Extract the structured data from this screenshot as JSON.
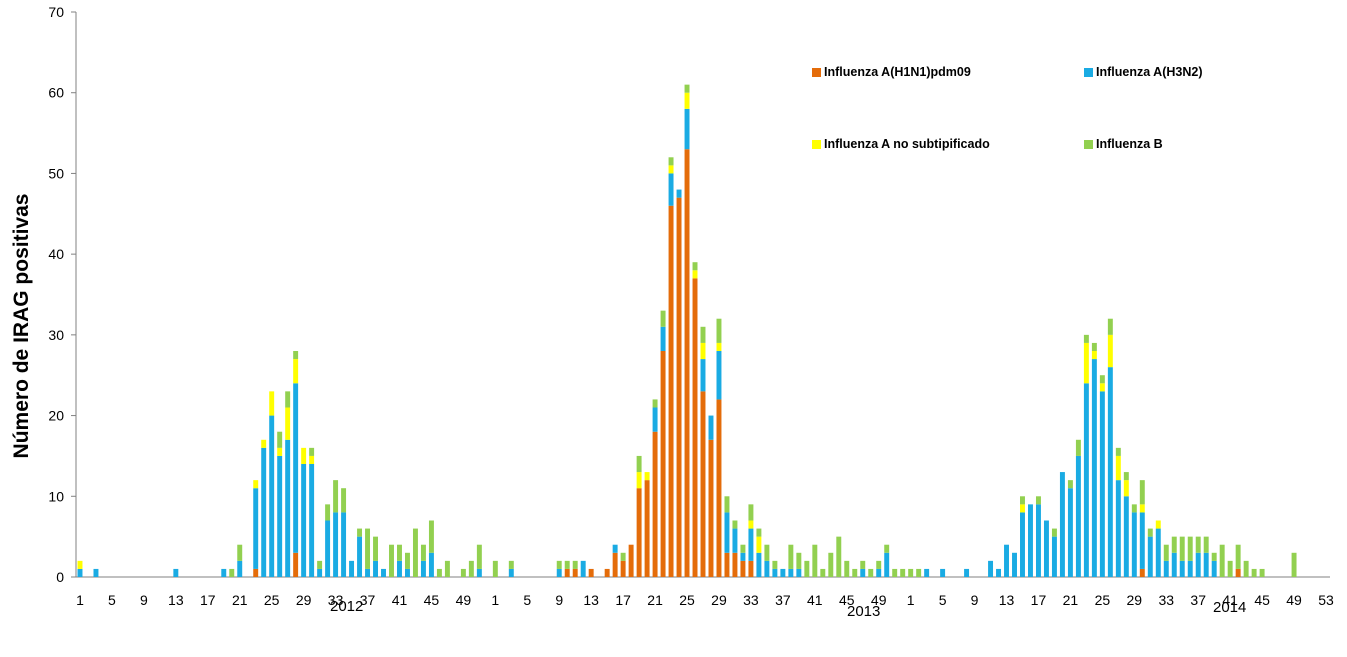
{
  "chart_data": {
    "type": "bar",
    "stacked": true,
    "title": "",
    "xlabel": "",
    "ylabel": "Número de IRAG positivas",
    "ylim": [
      0,
      70
    ],
    "yticks": [
      0,
      10,
      20,
      30,
      40,
      50,
      60,
      70
    ],
    "grid": false,
    "legend_position": "top-right",
    "years": [
      "2012",
      "2013",
      "2014"
    ],
    "weeks_per_year": [
      52,
      52,
      53
    ],
    "week_tick_labels": [
      [
        "1",
        "5",
        "9",
        "13",
        "17",
        "21",
        "25",
        "29",
        "33",
        "37",
        "41",
        "45",
        "49"
      ],
      [
        "1",
        "5",
        "9",
        "13",
        "17",
        "21",
        "25",
        "29",
        "33",
        "37",
        "41",
        "45",
        "49"
      ],
      [
        "1",
        "5",
        "9",
        "13",
        "17",
        "21",
        "25",
        "29",
        "33",
        "37",
        "41",
        "45",
        "49",
        "53"
      ]
    ],
    "series": [
      {
        "name": "Influenza A(H1N1)pdm09",
        "color": "#E46C0A",
        "values": [
          0,
          0,
          0,
          0,
          0,
          0,
          0,
          0,
          0,
          0,
          0,
          0,
          0,
          0,
          0,
          0,
          0,
          0,
          0,
          0,
          0,
          0,
          1,
          0,
          0,
          0,
          0,
          3,
          0,
          0,
          0,
          0,
          0,
          0,
          0,
          0,
          0,
          0,
          0,
          0,
          0,
          0,
          0,
          0,
          0,
          0,
          0,
          0,
          0,
          0,
          0,
          0,
          0,
          0,
          0,
          0,
          0,
          0,
          0,
          0,
          0,
          1,
          1,
          0,
          1,
          0,
          1,
          3,
          2,
          4,
          11,
          12,
          18,
          28,
          46,
          47,
          53,
          37,
          23,
          17,
          22,
          3,
          3,
          2,
          2,
          0,
          0,
          0,
          0,
          0,
          0,
          0,
          0,
          0,
          0,
          0,
          0,
          0,
          0,
          0,
          0,
          0,
          0,
          0,
          0,
          0,
          0,
          0,
          0,
          0,
          0,
          0,
          0,
          0,
          0,
          0,
          0,
          0,
          0,
          0,
          0,
          0,
          0,
          0,
          0,
          0,
          0,
          0,
          0,
          0,
          0,
          0,
          0,
          1,
          0,
          0,
          0,
          0,
          0,
          0,
          0,
          0,
          0,
          0,
          0,
          1,
          0,
          0,
          0,
          0,
          0,
          0,
          0,
          0,
          0,
          0,
          0
        ]
      },
      {
        "name": "Influenza A(H3N2)",
        "color": "#1AABE3",
        "values": [
          1,
          0,
          1,
          0,
          0,
          0,
          0,
          0,
          0,
          0,
          0,
          0,
          1,
          0,
          0,
          0,
          0,
          0,
          1,
          0,
          2,
          0,
          10,
          16,
          20,
          15,
          17,
          21,
          14,
          14,
          1,
          7,
          8,
          8,
          2,
          5,
          1,
          2,
          1,
          0,
          2,
          1,
          0,
          2,
          3,
          0,
          0,
          0,
          0,
          0,
          1,
          0,
          0,
          0,
          1,
          0,
          0,
          0,
          0,
          0,
          1,
          0,
          0,
          2,
          0,
          0,
          0,
          1,
          0,
          0,
          0,
          0,
          3,
          3,
          4,
          1,
          5,
          0,
          4,
          3,
          6,
          5,
          3,
          1,
          4,
          3,
          2,
          1,
          1,
          1,
          1,
          0,
          0,
          0,
          0,
          0,
          0,
          0,
          1,
          0,
          1,
          3,
          0,
          0,
          0,
          0,
          1,
          0,
          1,
          0,
          0,
          1,
          0,
          0,
          2,
          1,
          4,
          3,
          8,
          9,
          9,
          7,
          5,
          13,
          11,
          15,
          24,
          27,
          23,
          26,
          12,
          10,
          8,
          7,
          5,
          6,
          2,
          3,
          2,
          2,
          3,
          3,
          2,
          0,
          0,
          0,
          0,
          0,
          0,
          0,
          0,
          0,
          0,
          0
        ]
      },
      {
        "name": "Influenza A no subtipificado",
        "color": "#FFFF00",
        "values": [
          1,
          0,
          0,
          0,
          0,
          0,
          0,
          0,
          0,
          0,
          0,
          0,
          0,
          0,
          0,
          0,
          0,
          0,
          0,
          0,
          0,
          0,
          1,
          1,
          3,
          1,
          4,
          3,
          2,
          1,
          0,
          0,
          0,
          0,
          0,
          0,
          0,
          0,
          0,
          0,
          0,
          0,
          0,
          0,
          0,
          0,
          0,
          0,
          0,
          0,
          0,
          0,
          0,
          0,
          0,
          0,
          0,
          0,
          0,
          0,
          0,
          0,
          0,
          0,
          0,
          0,
          0,
          0,
          0,
          0,
          2,
          1,
          0,
          0,
          1,
          0,
          2,
          1,
          2,
          0,
          1,
          0,
          0,
          0,
          1,
          2,
          0,
          0,
          0,
          0,
          0,
          0,
          0,
          0,
          0,
          0,
          0,
          0,
          0,
          0,
          0,
          0,
          0,
          0,
          0,
          0,
          0,
          0,
          0,
          0,
          0,
          0,
          0,
          0,
          0,
          0,
          0,
          0,
          1,
          0,
          0,
          0,
          0,
          0,
          0,
          0,
          5,
          1,
          1,
          4,
          3,
          2,
          0,
          1,
          0,
          1,
          0,
          0,
          0,
          0,
          0,
          0,
          0,
          0,
          0,
          0,
          0,
          0,
          0,
          0,
          0,
          0,
          0,
          0,
          0,
          0,
          0
        ]
      },
      {
        "name": "Influenza  B",
        "color": "#92D050",
        "values": [
          0,
          0,
          0,
          0,
          0,
          0,
          0,
          0,
          0,
          0,
          0,
          0,
          0,
          0,
          0,
          0,
          0,
          0,
          0,
          1,
          2,
          0,
          0,
          0,
          0,
          2,
          2,
          1,
          0,
          1,
          1,
          2,
          4,
          3,
          0,
          1,
          5,
          3,
          0,
          4,
          2,
          2,
          6,
          2,
          4,
          1,
          2,
          0,
          1,
          2,
          3,
          0,
          2,
          0,
          1,
          0,
          0,
          0,
          0,
          0,
          1,
          1,
          1,
          0,
          0,
          0,
          0,
          0,
          1,
          0,
          2,
          0,
          1,
          2,
          1,
          0,
          1,
          1,
          2,
          0,
          3,
          2,
          1,
          1,
          2,
          1,
          2,
          1,
          0,
          3,
          2,
          2,
          4,
          1,
          3,
          5,
          2,
          1,
          1,
          1,
          1,
          1,
          1,
          1,
          1,
          1,
          0,
          0,
          0,
          0,
          0,
          0,
          0,
          0,
          0,
          0,
          0,
          0,
          1,
          0,
          1,
          0,
          1,
          0,
          1,
          2,
          1,
          1,
          1,
          2,
          1,
          1,
          1,
          3,
          1,
          0,
          2,
          2,
          3,
          3,
          2,
          2,
          1,
          4,
          2,
          3,
          2,
          1,
          1,
          0,
          0,
          0,
          3
        ]
      }
    ]
  }
}
